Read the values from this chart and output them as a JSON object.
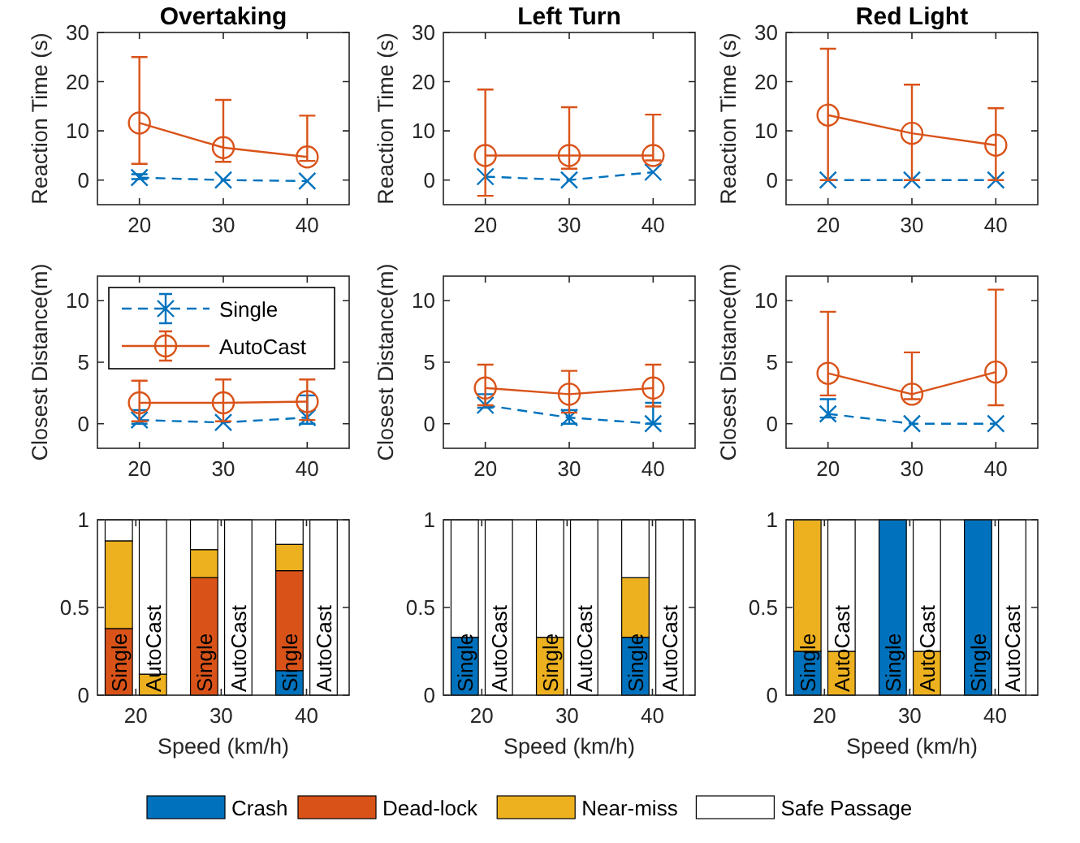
{
  "chart_data": [
    {
      "type": "line",
      "title": "Overtaking",
      "ylabel": "Reaction Time (s)",
      "x": [
        20,
        30,
        40
      ],
      "xlim": [
        15,
        45
      ],
      "xticks": [
        20,
        30,
        40
      ],
      "ylim": [
        -5,
        30
      ],
      "yticks": [
        0,
        10,
        20,
        30
      ],
      "series": [
        {
          "color": "#0072bd",
          "line_style": "dashed",
          "marker": "cross",
          "values": [
            0.5,
            0,
            -0.2
          ],
          "errors": [
            [
              0.2,
              1.2
            ],
            null,
            null
          ]
        },
        {
          "color": "#d95319",
          "line_style": "solid",
          "marker": "circle",
          "values": [
            11.6,
            6.6,
            4.7
          ],
          "errors": [
            [
              3.3,
              25
            ],
            [
              3.7,
              16.3
            ],
            [
              3.9,
              13.1
            ]
          ]
        }
      ]
    },
    {
      "type": "line",
      "title": "Left Turn",
      "ylabel": "Reaction Time (s)",
      "x": [
        20,
        30,
        40
      ],
      "xlim": [
        15,
        45
      ],
      "xticks": [
        20,
        30,
        40
      ],
      "ylim": [
        -5,
        30
      ],
      "yticks": [
        0,
        10,
        20,
        30
      ],
      "series": [
        {
          "color": "#0072bd",
          "line_style": "dashed",
          "marker": "cross",
          "values": [
            0.7,
            0,
            1.6
          ]
        },
        {
          "color": "#d95319",
          "line_style": "solid",
          "marker": "circle",
          "values": [
            5,
            5,
            5
          ],
          "errors": [
            [
              -3.2,
              18.4
            ],
            [
              2.3,
              14.8
            ],
            [
              4,
              13.3
            ]
          ]
        }
      ]
    },
    {
      "type": "line",
      "title": "Red Light",
      "ylabel": "Reaction Time (s)",
      "x": [
        20,
        30,
        40
      ],
      "xlim": [
        15,
        45
      ],
      "xticks": [
        20,
        30,
        40
      ],
      "ylim": [
        -5,
        30
      ],
      "yticks": [
        0,
        10,
        20,
        30
      ],
      "series": [
        {
          "color": "#0072bd",
          "line_style": "dashed",
          "marker": "cross",
          "values": [
            0,
            0,
            0
          ]
        },
        {
          "color": "#d95319",
          "line_style": "solid",
          "marker": "circle",
          "values": [
            13.2,
            9.5,
            7.1
          ],
          "errors": [
            [
              0,
              26.7
            ],
            [
              0,
              19.4
            ],
            [
              0,
              14.6
            ]
          ]
        }
      ]
    },
    {
      "type": "line",
      "ylabel": "Closest Distance(m)",
      "x": [
        20,
        30,
        40
      ],
      "xlim": [
        15,
        45
      ],
      "xticks": [
        20,
        30,
        40
      ],
      "ylim": [
        -2,
        12
      ],
      "yticks": [
        0,
        5,
        10
      ],
      "legend": "top left",
      "series": [
        {
          "name": "Single",
          "color": "#0072bd",
          "line_style": "dashed",
          "marker": "cross",
          "values": [
            0.3,
            0.1,
            0.5
          ],
          "errors": [
            [
              0,
              1.1
            ],
            null,
            [
              0,
              2.3
            ]
          ]
        },
        {
          "name": "AutoCast",
          "color": "#d95319",
          "line_style": "solid",
          "marker": "circle",
          "values": [
            1.7,
            1.7,
            1.8
          ],
          "errors": [
            [
              0.2,
              3.5
            ],
            [
              0.2,
              3.6
            ],
            [
              0.3,
              3.6
            ]
          ]
        }
      ]
    },
    {
      "type": "line",
      "ylabel": "Closest Distance(m)",
      "x": [
        20,
        30,
        40
      ],
      "xlim": [
        15,
        45
      ],
      "xticks": [
        20,
        30,
        40
      ],
      "ylim": [
        -2,
        12
      ],
      "yticks": [
        0,
        5,
        10
      ],
      "series": [
        {
          "color": "#0072bd",
          "line_style": "dashed",
          "marker": "cross",
          "values": [
            1.5,
            0.5,
            0
          ],
          "errors": [
            [
              1.3,
              2.4
            ],
            [
              0,
              1.1
            ],
            [
              0,
              1.7
            ]
          ]
        },
        {
          "color": "#d95319",
          "line_style": "solid",
          "marker": "circle",
          "values": [
            2.9,
            2.4,
            2.9
          ],
          "errors": [
            [
              1.5,
              4.8
            ],
            [
              0.9,
              4.3
            ],
            [
              1.4,
              4.8
            ]
          ]
        }
      ]
    },
    {
      "type": "line",
      "ylabel": "Closest Distance(m)",
      "x": [
        20,
        30,
        40
      ],
      "xlim": [
        15,
        45
      ],
      "xticks": [
        20,
        30,
        40
      ],
      "ylim": [
        -2,
        12
      ],
      "yticks": [
        0,
        5,
        10
      ],
      "series": [
        {
          "color": "#0072bd",
          "line_style": "dashed",
          "marker": "cross",
          "values": [
            0.8,
            0,
            0
          ],
          "errors": [
            [
              0.5,
              2
            ],
            null,
            null
          ]
        },
        {
          "color": "#d95319",
          "line_style": "solid",
          "marker": "circle",
          "values": [
            4.1,
            2.4,
            4.2
          ],
          "errors": [
            [
              2.3,
              9.1
            ],
            [
              2,
              5.8
            ],
            [
              1.5,
              10.9
            ]
          ]
        }
      ]
    },
    {
      "type": "bar",
      "stacked": true,
      "xlabel": "Speed (km/h)",
      "x": [
        18,
        22,
        28,
        32,
        38,
        42
      ],
      "xlim": [
        15.5,
        45
      ],
      "xticks": [
        20,
        30,
        40
      ],
      "ylim": [
        0,
        1
      ],
      "yticks": [
        0,
        0.5,
        1
      ],
      "legend": "bottom",
      "series": [
        {
          "name": "Crash",
          "color": "#0072bd",
          "values": [
            0,
            0,
            0,
            0,
            0.14,
            0
          ]
        },
        {
          "name": "Dead-lock",
          "color": "#d95319",
          "values": [
            0.38,
            0,
            0.67,
            0,
            0.57,
            0
          ]
        },
        {
          "name": "Near-miss",
          "color": "#edb120",
          "values": [
            0.5,
            0.12,
            0.16,
            0,
            0.15,
            0
          ]
        },
        {
          "name": "Safe Passage",
          "color": "#ffffff",
          "values": [
            0.12,
            0.88,
            0.17,
            1,
            0.14,
            1
          ]
        }
      ],
      "annotations": [
        {
          "text": "Single",
          "x": 18,
          "y": 0
        },
        {
          "text": "AutoCast",
          "x": 22,
          "y": 0
        },
        {
          "text": "Single",
          "x": 28,
          "y": 0
        },
        {
          "text": "AutoCast",
          "x": 32,
          "y": 0
        },
        {
          "text": "Single",
          "x": 38,
          "y": 0
        },
        {
          "text": "AutoCast",
          "x": 42,
          "y": 0
        }
      ]
    },
    {
      "type": "bar",
      "stacked": true,
      "xlabel": "Speed (km/h)",
      "x": [
        18,
        22,
        28,
        32,
        38,
        42
      ],
      "xlim": [
        15.5,
        45
      ],
      "xticks": [
        20,
        30,
        40
      ],
      "ylim": [
        0,
        1
      ],
      "yticks": [
        0,
        0.5,
        1
      ],
      "series": [
        {
          "color": "#0072bd",
          "values": [
            0.33,
            0,
            0,
            0,
            0.33,
            0
          ]
        },
        {
          "color": "#d95319",
          "values": [
            0,
            0,
            0,
            0,
            0,
            0
          ]
        },
        {
          "color": "#edb120",
          "values": [
            0,
            0,
            0.33,
            0,
            0.34,
            0
          ]
        },
        {
          "color": "#ffffff",
          "values": [
            0.67,
            1,
            0.67,
            1,
            0.33,
            1
          ]
        }
      ],
      "annotations": [
        {
          "text": "Single",
          "x": 18,
          "y": 0
        },
        {
          "text": "AutoCast",
          "x": 22,
          "y": 0
        },
        {
          "text": "Single",
          "x": 28,
          "y": 0
        },
        {
          "text": "AutoCast",
          "x": 32,
          "y": 0
        },
        {
          "text": "Single",
          "x": 38,
          "y": 0
        },
        {
          "text": "AutoCast",
          "x": 42,
          "y": 0
        }
      ]
    },
    {
      "type": "bar",
      "stacked": true,
      "xlabel": "Speed (km/h)",
      "x": [
        18,
        22,
        28,
        32,
        38,
        42
      ],
      "xlim": [
        15.5,
        45
      ],
      "xticks": [
        20,
        30,
        40
      ],
      "ylim": [
        0,
        1
      ],
      "yticks": [
        0,
        0.5,
        1
      ],
      "series": [
        {
          "color": "#0072bd",
          "values": [
            0.25,
            0,
            1,
            0,
            1,
            0
          ]
        },
        {
          "color": "#d95319",
          "values": [
            0,
            0,
            0,
            0,
            0,
            0
          ]
        },
        {
          "color": "#edb120",
          "values": [
            0.75,
            0.25,
            0,
            0.25,
            0,
            0
          ]
        },
        {
          "color": "#ffffff",
          "values": [
            0,
            0.75,
            0,
            0.75,
            0,
            1
          ]
        }
      ],
      "annotations": [
        {
          "text": "Single",
          "x": 18,
          "y": 0
        },
        {
          "text": "AutoCast",
          "x": 22,
          "y": 0
        },
        {
          "text": "Single",
          "x": 28,
          "y": 0
        },
        {
          "text": "AutoCast",
          "x": 32,
          "y": 0
        },
        {
          "text": "Single",
          "x": 38,
          "y": 0
        },
        {
          "text": "AutoCast",
          "x": 42,
          "y": 0
        }
      ]
    }
  ]
}
